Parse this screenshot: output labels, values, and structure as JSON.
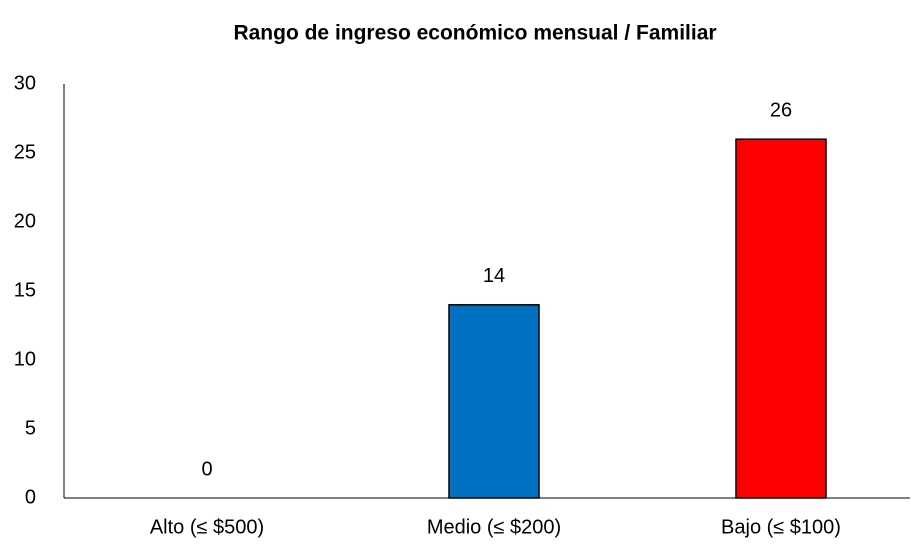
{
  "chart_data": {
    "type": "bar",
    "title": "Rango de ingreso económico mensual / Familiar",
    "categories": [
      "Alto (≤ $500)",
      "Medio (≤ $200)",
      "Bajo (≤ $100)"
    ],
    "values": [
      0,
      14,
      26
    ],
    "colors": [
      "#00b050",
      "#0070c0",
      "#ff0000"
    ],
    "ylim": [
      0,
      30
    ],
    "yticks": [
      0,
      5,
      10,
      15,
      20,
      25,
      30
    ],
    "grid": false
  }
}
